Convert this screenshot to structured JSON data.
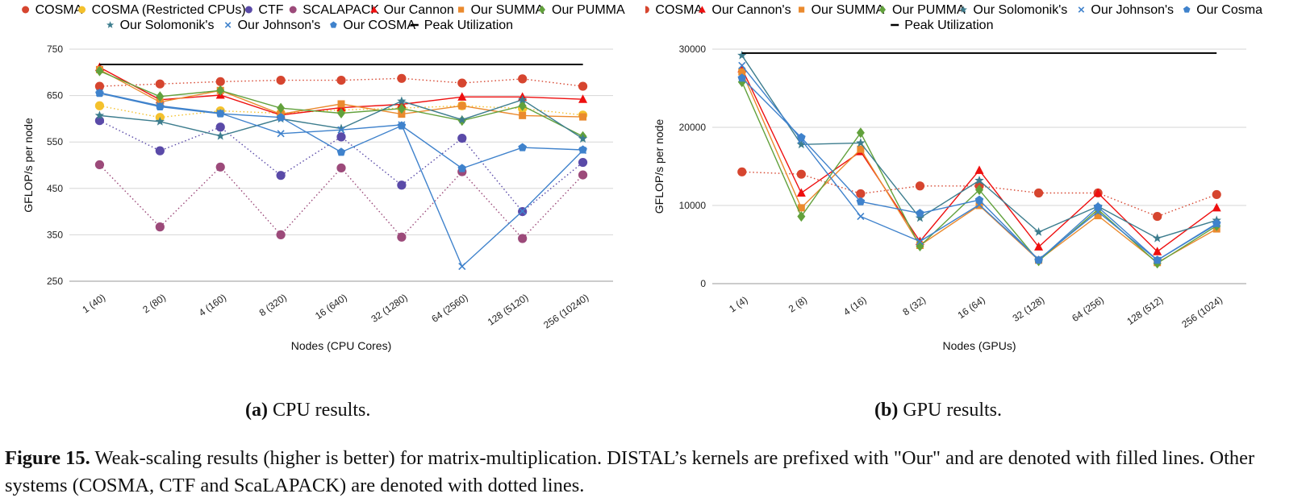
{
  "caption": {
    "label": "Figure 15.",
    "text": "Weak-scaling results (higher is better) for matrix-multiplication. DISTAL’s kernels are prefixed with \"Our\" and are denoted with filled lines. Other systems (COSMA, CTF and ScaLAPACK) are denoted with dotted lines."
  },
  "subcaptions": [
    {
      "label": "(a)",
      "text": "CPU results."
    },
    {
      "label": "(b)",
      "text": "GPU results."
    }
  ],
  "chart_data": [
    {
      "type": "line",
      "xlabel": "Nodes (CPU Cores)",
      "ylabel": "GFLOP/s per node",
      "ylim": [
        250,
        750
      ],
      "yticks": [
        "250",
        "350",
        "450",
        "550",
        "650",
        "750"
      ],
      "grid": true,
      "legend_position": "top",
      "categories": [
        "1 (40)",
        "2 (80)",
        "4 (160)",
        "8 (320)",
        "16 (640)",
        "32 (1280)",
        "64 (2560)",
        "128 (5120)",
        "256 (10240)"
      ],
      "series": [
        {
          "name": "COSMA",
          "color": "#d6452f",
          "marker": "circle",
          "dotted": true,
          "values": [
            670,
            675,
            680,
            683,
            683,
            687,
            677,
            686,
            670
          ]
        },
        {
          "name": "COSMA (Restricted CPUs)",
          "color": "#f4c12c",
          "marker": "circle",
          "dotted": true,
          "values": [
            628,
            603,
            617,
            612,
            619,
            623,
            628,
            622,
            608
          ]
        },
        {
          "name": "CTF",
          "color": "#5a4aa8",
          "marker": "circle",
          "dotted": true,
          "values": [
            596,
            531,
            582,
            478,
            561,
            457,
            558,
            400,
            506
          ]
        },
        {
          "name": "SCALAPACK",
          "color": "#9c4a7a",
          "marker": "circle",
          "dotted": true,
          "values": [
            501,
            367,
            496,
            350,
            494,
            345,
            486,
            342,
            479
          ]
        },
        {
          "name": "Our Cannon",
          "color": "#ee0f0f",
          "marker": "triangle",
          "dotted": false,
          "values": [
            711,
            641,
            651,
            608,
            624,
            631,
            647,
            647,
            642
          ]
        },
        {
          "name": "Our SUMMA",
          "color": "#ea8a2e",
          "marker": "square",
          "dotted": false,
          "values": [
            706,
            636,
            661,
            610,
            632,
            610,
            628,
            607,
            604
          ]
        },
        {
          "name": "Our PUMMA",
          "color": "#62a13c",
          "marker": "diamond",
          "dotted": false,
          "values": [
            703,
            648,
            661,
            623,
            612,
            622,
            596,
            628,
            562
          ]
        },
        {
          "name": "Our Solomonik's",
          "color": "#3d7d8e",
          "marker": "star",
          "dotted": false,
          "values": [
            607,
            594,
            563,
            600,
            579,
            638,
            598,
            641,
            557
          ]
        },
        {
          "name": "Our Johnson's",
          "color": "#3f82cc",
          "marker": "x",
          "dotted": false,
          "values": [
            656,
            628,
            612,
            568,
            576,
            587,
            282,
            401,
            532
          ]
        },
        {
          "name": "Our COSMA",
          "color": "#3f82cc",
          "marker": "pentagon",
          "dotted": false,
          "values": [
            655,
            626,
            611,
            603,
            528,
            585,
            493,
            538,
            533
          ]
        },
        {
          "name": "Peak Utilization",
          "color": "#000000",
          "marker": "none",
          "dotted": false,
          "values": [
            717,
            717,
            717,
            717,
            717,
            717,
            717,
            717,
            717
          ]
        }
      ]
    },
    {
      "type": "line",
      "xlabel": "Nodes (GPUs)",
      "ylabel": "GFLOP/s per node",
      "ylim": [
        0,
        30000
      ],
      "yticks": [
        "0",
        "10000",
        "20000",
        "30000"
      ],
      "grid": true,
      "legend_position": "top",
      "categories": [
        "1 (4)",
        "2 (8)",
        "4 (16)",
        "8 (32)",
        "16 (64)",
        "32 (128)",
        "64 (256)",
        "128 (512)",
        "256 (1024)"
      ],
      "series": [
        {
          "name": "COSMA",
          "color": "#d6452f",
          "marker": "circle",
          "dotted": true,
          "values": [
            14300,
            14000,
            11500,
            12500,
            12500,
            11600,
            11600,
            8600,
            11400
          ]
        },
        {
          "name": "Our Cannon's",
          "color": "#ee0f0f",
          "marker": "triangle",
          "dotted": false,
          "values": [
            27500,
            11600,
            16900,
            5400,
            14500,
            4700,
            11600,
            4100,
            9700
          ]
        },
        {
          "name": "Our SUMMA",
          "color": "#ea8a2e",
          "marker": "square",
          "dotted": false,
          "values": [
            27100,
            9700,
            17200,
            4900,
            10000,
            3000,
            8700,
            2700,
            7000
          ]
        },
        {
          "name": "Our PUMMA",
          "color": "#62a13c",
          "marker": "diamond",
          "dotted": false,
          "values": [
            25800,
            8600,
            19300,
            4800,
            12000,
            2900,
            9500,
            2600,
            7400
          ]
        },
        {
          "name": "Our Solomonik's",
          "color": "#3d7d8e",
          "marker": "star",
          "dotted": false,
          "values": [
            29200,
            17800,
            18000,
            8400,
            13200,
            6600,
            9900,
            5800,
            8100
          ]
        },
        {
          "name": "Our Johnson's",
          "color": "#3f82cc",
          "marker": "x",
          "dotted": false,
          "values": [
            27900,
            18400,
            8600,
            5400,
            10100,
            3100,
            9200,
            3000,
            7600
          ]
        },
        {
          "name": "Our Cosma",
          "color": "#3f82cc",
          "marker": "pentagon",
          "dotted": false,
          "values": [
            26300,
            18700,
            10500,
            9000,
            10700,
            3000,
            9800,
            3000,
            7700
          ]
        },
        {
          "name": "Peak Utilization",
          "color": "#000000",
          "marker": "none",
          "dotted": false,
          "values": [
            29500,
            29500,
            29500,
            29500,
            29500,
            29500,
            29500,
            29500,
            29500
          ]
        }
      ]
    }
  ]
}
